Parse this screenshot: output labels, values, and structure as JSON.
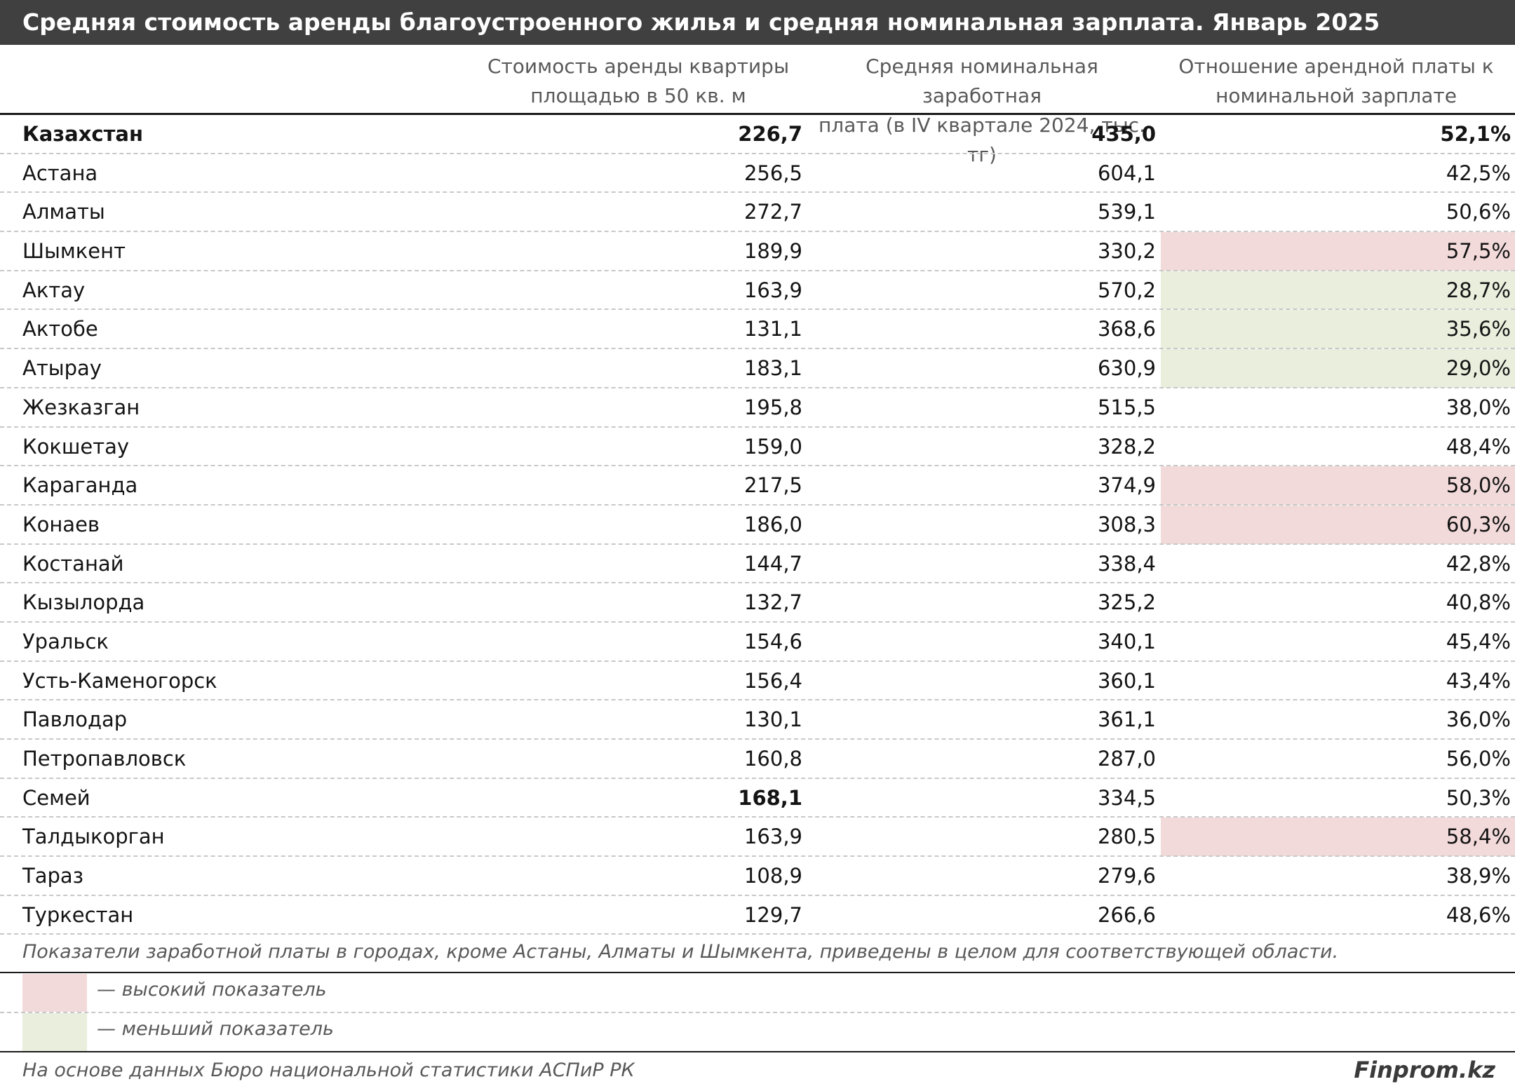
{
  "title": "Средняя стоимость аренды благоустроенного жилья и средняя номинальная зарплата. Январь 2025",
  "chart_data": {
    "type": "table",
    "title": "Средняя стоимость аренды благоустроенного жилья и средняя номинальная зарплата. Январь 2025",
    "columns": [
      "Стоимость аренды квартиры площадью в 50 кв. м",
      "Средняя номинальная заработная плата (в IV квартале 2024, тыс. тг)",
      "Отношение арендной платы к номинальной зарплате"
    ],
    "rows": [
      {
        "city": "Казахстан",
        "rent": "226,7",
        "salary": "435,0",
        "ratio": "52,1%",
        "highlight": "",
        "bold_city": true,
        "bold_rent": true,
        "bold_salary": true,
        "bold_ratio": true
      },
      {
        "city": "Астана",
        "rent": "256,5",
        "salary": "604,1",
        "ratio": "42,5%",
        "highlight": ""
      },
      {
        "city": "Алматы",
        "rent": "272,7",
        "salary": "539,1",
        "ratio": "50,6%",
        "highlight": ""
      },
      {
        "city": "Шымкент",
        "rent": "189,9",
        "salary": "330,2",
        "ratio": "57,5%",
        "highlight": "high"
      },
      {
        "city": "Актау",
        "rent": "163,9",
        "salary": "570,2",
        "ratio": "28,7%",
        "highlight": "low"
      },
      {
        "city": "Актобе",
        "rent": "131,1",
        "salary": "368,6",
        "ratio": "35,6%",
        "highlight": "low"
      },
      {
        "city": "Атырау",
        "rent": "183,1",
        "salary": "630,9",
        "ratio": "29,0%",
        "highlight": "low"
      },
      {
        "city": "Жезказган",
        "rent": "195,8",
        "salary": "515,5",
        "ratio": "38,0%",
        "highlight": ""
      },
      {
        "city": "Кокшетау",
        "rent": "159,0",
        "salary": "328,2",
        "ratio": "48,4%",
        "highlight": ""
      },
      {
        "city": "Караганда",
        "rent": "217,5",
        "salary": "374,9",
        "ratio": "58,0%",
        "highlight": "high"
      },
      {
        "city": "Конаев",
        "rent": "186,0",
        "salary": "308,3",
        "ratio": "60,3%",
        "highlight": "high"
      },
      {
        "city": "Костанай",
        "rent": "144,7",
        "salary": "338,4",
        "ratio": "42,8%",
        "highlight": ""
      },
      {
        "city": "Кызылорда",
        "rent": "132,7",
        "salary": "325,2",
        "ratio": "40,8%",
        "highlight": ""
      },
      {
        "city": "Уральск",
        "rent": "154,6",
        "salary": "340,1",
        "ratio": "45,4%",
        "highlight": ""
      },
      {
        "city": "Усть-Каменогорск",
        "rent": "156,4",
        "salary": "360,1",
        "ratio": "43,4%",
        "highlight": ""
      },
      {
        "city": "Павлодар",
        "rent": "130,1",
        "salary": "361,1",
        "ratio": "36,0%",
        "highlight": ""
      },
      {
        "city": "Петропавловск",
        "rent": "160,8",
        "salary": "287,0",
        "ratio": "56,0%",
        "highlight": ""
      },
      {
        "city": "Семей",
        "rent": "168,1",
        "salary": "334,5",
        "ratio": "50,3%",
        "highlight": "",
        "bold_rent": true
      },
      {
        "city": "Талдыкорган",
        "rent": "163,9",
        "salary": "280,5",
        "ratio": "58,4%",
        "highlight": "high"
      },
      {
        "city": "Тараз",
        "rent": "108,9",
        "salary": "279,6",
        "ratio": "38,9%",
        "highlight": ""
      },
      {
        "city": "Туркестан",
        "rent": "129,7",
        "salary": "266,6",
        "ratio": "48,6%",
        "highlight": ""
      }
    ]
  },
  "header": {
    "col1_line1": "Стоимость аренды квартиры",
    "col1_line2": "площадью в 50 кв. м",
    "col2_line1": "Средняя номинальная заработная",
    "col2_line2": "плата (в IV квартале 2024, тыс. тг)",
    "col3_line1": "Отношение арендной платы к",
    "col3_line2": "номинальной зарплате"
  },
  "note": "Показатели заработной платы в городах, кроме Астаны, Алматы и Шымкента, приведены в целом для соответствующей области.",
  "legend": {
    "high_label": "— высокий показатель",
    "low_label": "— меньший показатель",
    "high_color": "#f3dada",
    "low_color": "#e9eedd"
  },
  "source": "На основе данных Бюро национальной статистики АСПиР РК",
  "brand": "Finprom.kz"
}
